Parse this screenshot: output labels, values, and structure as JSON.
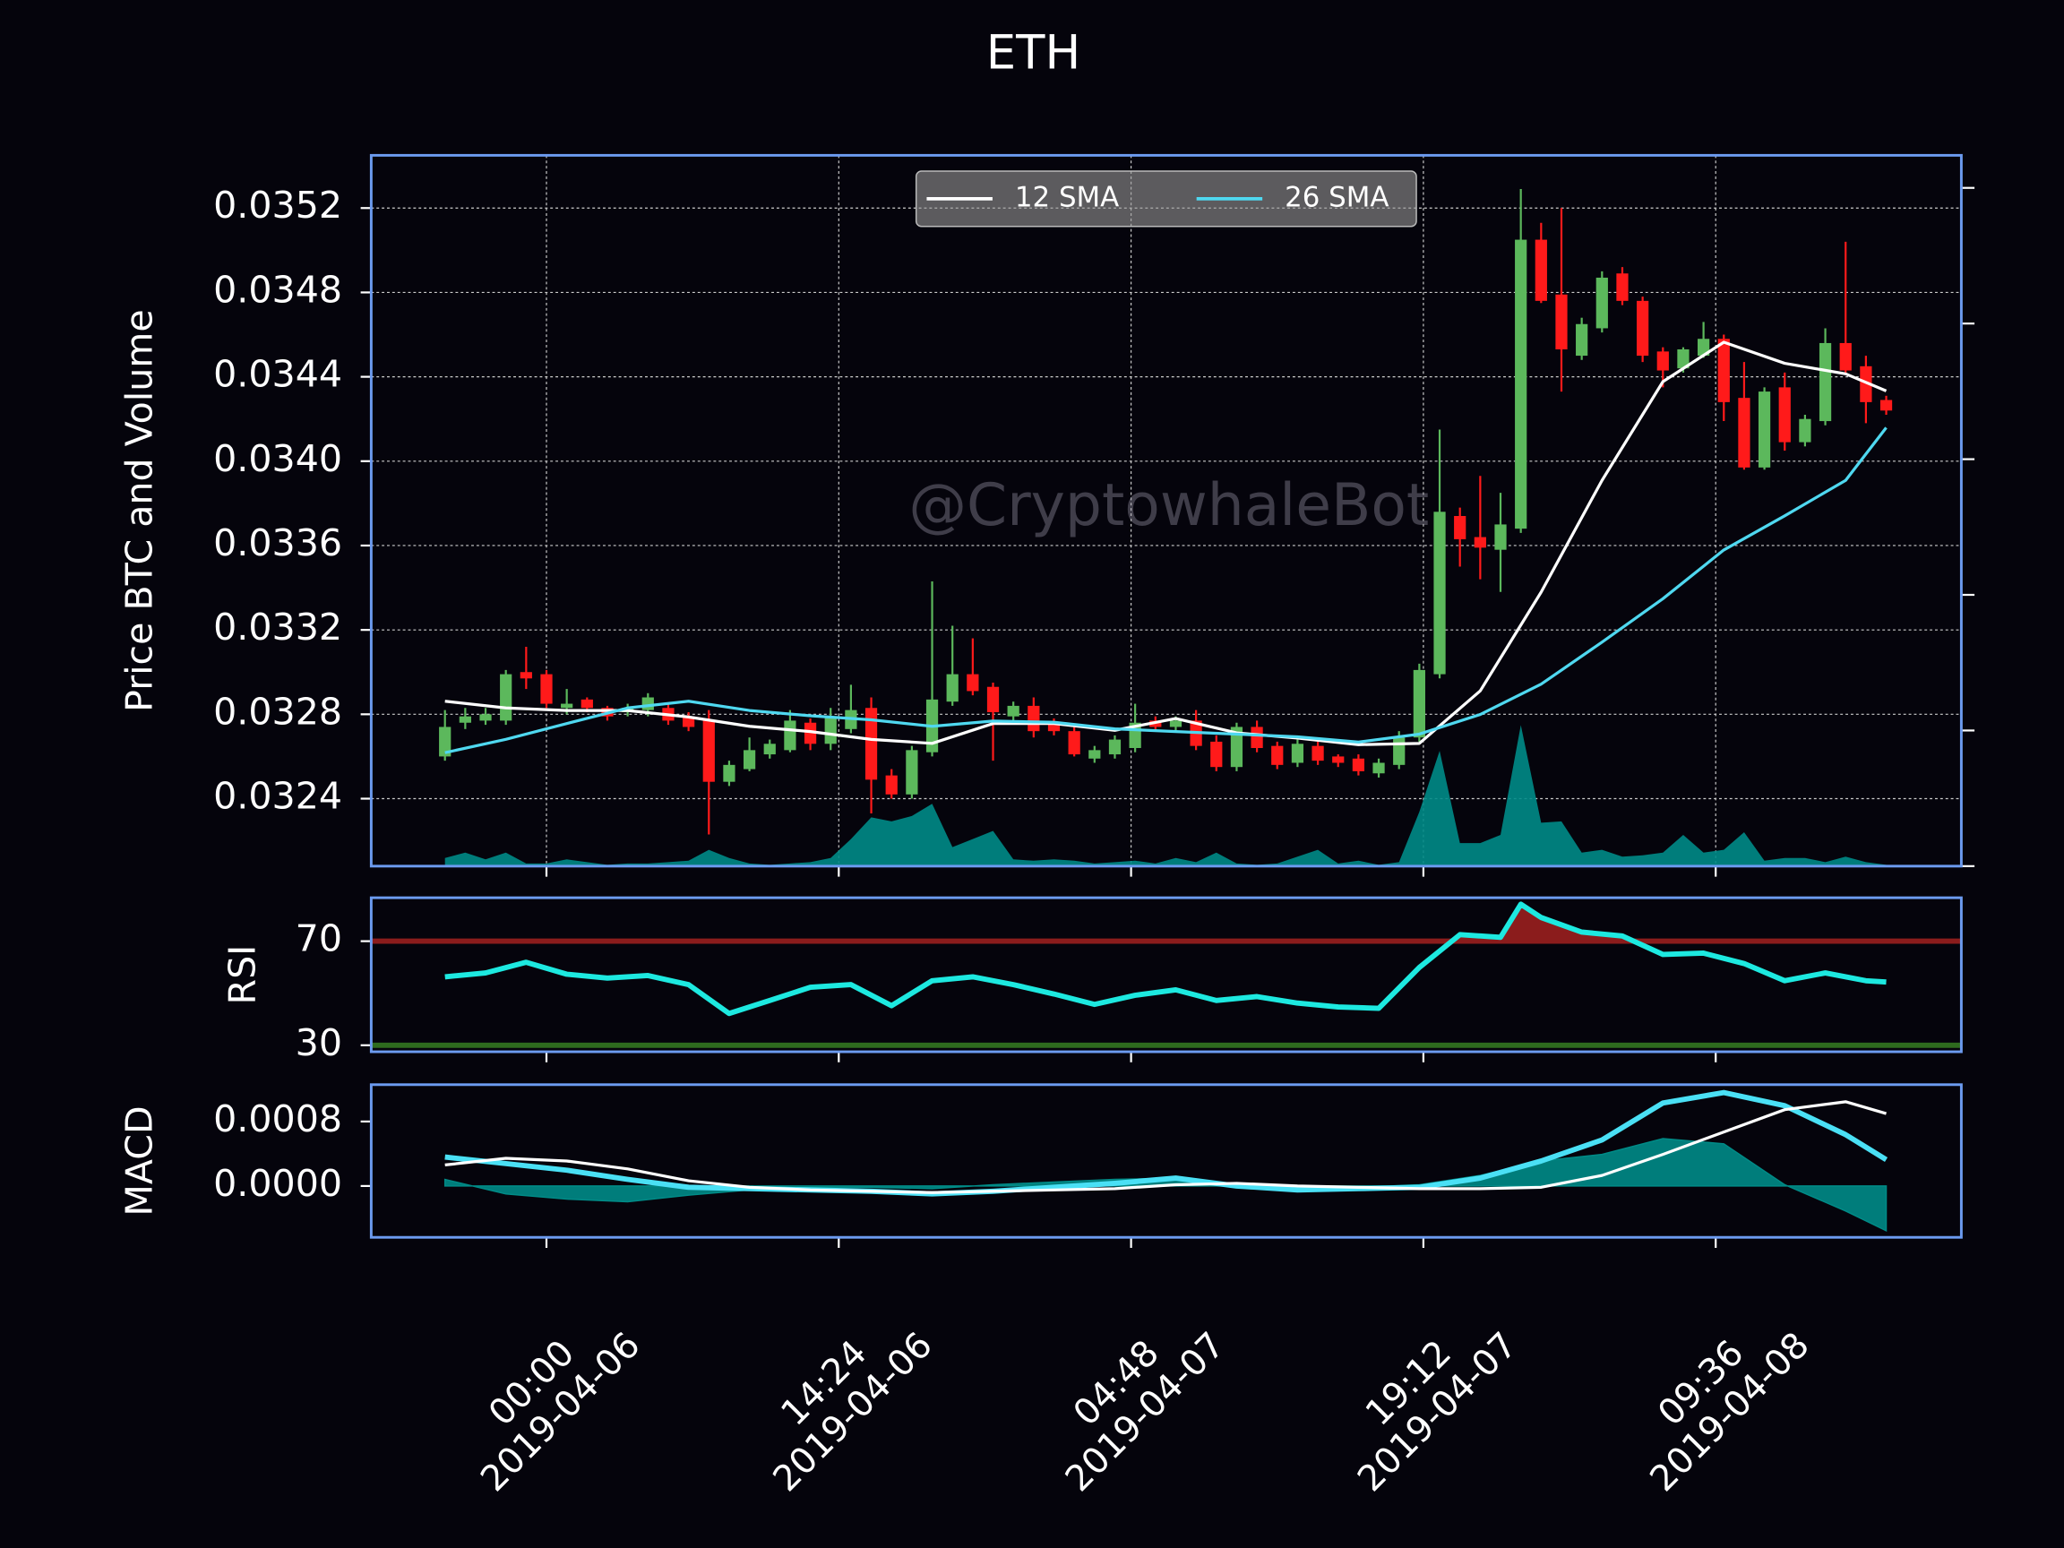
{
  "chart_data": [
    {
      "type": "candlestick",
      "title": "ETH",
      "ylabel": "Price BTC and Volume",
      "watermark": "@CryptowhaleBot",
      "x": [
        "2019-04-05 19:00",
        "2019-04-05 20:00",
        "2019-04-05 21:00",
        "2019-04-05 22:00",
        "2019-04-05 23:00",
        "2019-04-06 00:00",
        "2019-04-06 01:00",
        "2019-04-06 02:00",
        "2019-04-06 03:00",
        "2019-04-06 04:00",
        "2019-04-06 05:00",
        "2019-04-06 06:00",
        "2019-04-06 07:00",
        "2019-04-06 08:00",
        "2019-04-06 09:00",
        "2019-04-06 10:00",
        "2019-04-06 11:00",
        "2019-04-06 12:00",
        "2019-04-06 13:00",
        "2019-04-06 14:00",
        "2019-04-06 15:00",
        "2019-04-06 16:00",
        "2019-04-06 17:00",
        "2019-04-06 18:00",
        "2019-04-06 19:00",
        "2019-04-06 20:00",
        "2019-04-06 21:00",
        "2019-04-06 22:00",
        "2019-04-06 23:00",
        "2019-04-07 00:00",
        "2019-04-07 01:00",
        "2019-04-07 02:00",
        "2019-04-07 03:00",
        "2019-04-07 04:00",
        "2019-04-07 05:00",
        "2019-04-07 06:00",
        "2019-04-07 07:00",
        "2019-04-07 08:00",
        "2019-04-07 09:00",
        "2019-04-07 10:00",
        "2019-04-07 11:00",
        "2019-04-07 12:00",
        "2019-04-07 13:00",
        "2019-04-07 14:00",
        "2019-04-07 15:00",
        "2019-04-07 16:00",
        "2019-04-07 17:00",
        "2019-04-07 18:00",
        "2019-04-07 19:00",
        "2019-04-07 20:00",
        "2019-04-07 21:00",
        "2019-04-07 22:00",
        "2019-04-07 23:00",
        "2019-04-08 00:00",
        "2019-04-08 01:00",
        "2019-04-08 02:00",
        "2019-04-08 03:00",
        "2019-04-08 04:00",
        "2019-04-08 05:00",
        "2019-04-08 06:00",
        "2019-04-08 07:00",
        "2019-04-08 08:00",
        "2019-04-08 09:00",
        "2019-04-08 10:00",
        "2019-04-08 11:00",
        "2019-04-08 12:00",
        "2019-04-08 13:00",
        "2019-04-08 14:00",
        "2019-04-08 15:00",
        "2019-04-08 16:00",
        "2019-04-08 17:00",
        "2019-04-08 18:00"
      ],
      "open": [
        0.0326,
        0.03276,
        0.03277,
        0.03277,
        0.033,
        0.03299,
        0.03283,
        0.03287,
        0.03283,
        0.03281,
        0.03282,
        0.03283,
        0.03279,
        0.03277,
        0.03248,
        0.03254,
        0.03261,
        0.03263,
        0.03276,
        0.03266,
        0.03273,
        0.03283,
        0.03251,
        0.03242,
        0.03262,
        0.03286,
        0.03299,
        0.03293,
        0.03279,
        0.03284,
        0.03276,
        0.03272,
        0.03259,
        0.03261,
        0.03264,
        0.03277,
        0.03274,
        0.03277,
        0.03267,
        0.03255,
        0.03274,
        0.03265,
        0.03257,
        0.03265,
        0.0326,
        0.03259,
        0.03252,
        0.03256,
        0.03269,
        0.03299,
        0.03374,
        0.03364,
        0.03358,
        0.03368,
        0.03505,
        0.03479,
        0.0345,
        0.03463,
        0.03489,
        0.03476,
        0.03452,
        0.03444,
        0.0345,
        0.03458,
        0.0343,
        0.03397,
        0.03435,
        0.03409,
        0.03419,
        0.03456,
        0.03445,
        0.03429
      ],
      "high": [
        0.03282,
        0.03283,
        0.03283,
        0.03301,
        0.03312,
        0.03301,
        0.03292,
        0.03288,
        0.03284,
        0.03285,
        0.0329,
        0.03285,
        0.03281,
        0.03282,
        0.03258,
        0.03269,
        0.03268,
        0.03282,
        0.03278,
        0.03283,
        0.03294,
        0.03288,
        0.03254,
        0.03265,
        0.03343,
        0.03322,
        0.03316,
        0.03295,
        0.03286,
        0.03288,
        0.03278,
        0.03274,
        0.03265,
        0.0327,
        0.03285,
        0.03279,
        0.03279,
        0.03282,
        0.0327,
        0.03276,
        0.03277,
        0.03267,
        0.03268,
        0.03267,
        0.03261,
        0.03261,
        0.03259,
        0.03272,
        0.03304,
        0.03415,
        0.03378,
        0.03393,
        0.03385,
        0.03529,
        0.03513,
        0.0352,
        0.03468,
        0.0349,
        0.03492,
        0.03478,
        0.03454,
        0.03454,
        0.03466,
        0.0346,
        0.03447,
        0.03435,
        0.03442,
        0.03422,
        0.03463,
        0.03504,
        0.0345,
        0.03431
      ],
      "low": [
        0.03258,
        0.03273,
        0.03275,
        0.03275,
        0.03292,
        0.03283,
        0.0328,
        0.03281,
        0.03277,
        0.03279,
        0.03279,
        0.03275,
        0.03272,
        0.03223,
        0.03246,
        0.03253,
        0.03259,
        0.03262,
        0.03263,
        0.03263,
        0.03271,
        0.03233,
        0.0324,
        0.0324,
        0.0326,
        0.03284,
        0.03289,
        0.03258,
        0.03277,
        0.03269,
        0.0327,
        0.0326,
        0.03257,
        0.03259,
        0.03262,
        0.03272,
        0.03272,
        0.03263,
        0.03253,
        0.03253,
        0.03262,
        0.03254,
        0.03255,
        0.03256,
        0.03255,
        0.03251,
        0.0325,
        0.03254,
        0.03267,
        0.03297,
        0.0335,
        0.03344,
        0.03338,
        0.03366,
        0.03475,
        0.03433,
        0.03448,
        0.03461,
        0.03474,
        0.03447,
        0.03435,
        0.03442,
        0.03449,
        0.03419,
        0.03396,
        0.03396,
        0.03405,
        0.03407,
        0.03417,
        0.03441,
        0.03418,
        0.03422
      ],
      "close": [
        0.03274,
        0.03279,
        0.0328,
        0.03299,
        0.03297,
        0.03285,
        0.03285,
        0.03283,
        0.03279,
        0.03283,
        0.03288,
        0.03277,
        0.03274,
        0.03248,
        0.03256,
        0.03263,
        0.03266,
        0.03277,
        0.03266,
        0.03279,
        0.03282,
        0.03249,
        0.03242,
        0.03263,
        0.03287,
        0.03299,
        0.03291,
        0.03281,
        0.03284,
        0.03272,
        0.03272,
        0.03261,
        0.03263,
        0.03268,
        0.03276,
        0.03274,
        0.03277,
        0.03265,
        0.03255,
        0.03274,
        0.03264,
        0.03256,
        0.03266,
        0.03258,
        0.03257,
        0.03253,
        0.03257,
        0.03269,
        0.03301,
        0.03376,
        0.03363,
        0.03359,
        0.0337,
        0.03505,
        0.03476,
        0.03453,
        0.03465,
        0.03487,
        0.03476,
        0.0345,
        0.03443,
        0.03453,
        0.03458,
        0.03428,
        0.03397,
        0.03433,
        0.03409,
        0.0342,
        0.03456,
        0.03443,
        0.03428,
        0.03424
      ],
      "up_color": "#5cb85c",
      "down_color": "#ff1a1a",
      "volume": {
        "axis": "y2",
        "color": "#008b87",
        "values": [
          0.06,
          0.1,
          0.05,
          0.1,
          0.02,
          0.02,
          0.05,
          0.03,
          0.01,
          0.02,
          0.02,
          0.03,
          0.04,
          0.12,
          0.06,
          0.02,
          0.01,
          0.02,
          0.03,
          0.06,
          0.2,
          0.36,
          0.33,
          0.37,
          0.46,
          0.14,
          0.2,
          0.26,
          0.05,
          0.04,
          0.05,
          0.04,
          0.02,
          0.03,
          0.04,
          0.02,
          0.06,
          0.03,
          0.1,
          0.02,
          0.01,
          0.02,
          0.07,
          0.12,
          0.02,
          0.04,
          0.01,
          0.03,
          0.4,
          0.85,
          0.17,
          0.17,
          0.23,
          1.04,
          0.32,
          0.33,
          0.1,
          0.12,
          0.07,
          0.08,
          0.1,
          0.23,
          0.1,
          0.12,
          0.25,
          0.04,
          0.06,
          0.06,
          0.03,
          0.07,
          0.03,
          0.01
        ]
      },
      "series": [
        {
          "name": "12 SMA",
          "color": "#ffffff",
          "x": [
            "2019-04-05 19:00",
            "2019-04-05 22:00",
            "2019-04-06 01:00",
            "2019-04-06 04:00",
            "2019-04-06 07:00",
            "2019-04-06 10:00",
            "2019-04-06 13:00",
            "2019-04-06 16:00",
            "2019-04-06 19:00",
            "2019-04-06 22:00",
            "2019-04-07 01:00",
            "2019-04-07 04:00",
            "2019-04-07 07:00",
            "2019-04-07 10:00",
            "2019-04-07 13:00",
            "2019-04-07 16:00",
            "2019-04-07 19:00",
            "2019-04-07 22:00",
            "2019-04-08 01:00",
            "2019-04-08 04:00",
            "2019-04-08 07:00",
            "2019-04-08 10:00",
            "2019-04-08 13:00",
            "2019-04-08 16:00",
            "2019-04-08 18:00"
          ],
          "values": [
            0.032862,
            0.03283,
            0.032818,
            0.032818,
            0.032787,
            0.032743,
            0.032718,
            0.032681,
            0.032662,
            0.032756,
            0.032756,
            0.032724,
            0.03278,
            0.032712,
            0.032687,
            0.032656,
            0.032662,
            0.032911,
            0.033379,
            0.033909,
            0.034377,
            0.034564,
            0.034464,
            0.034414,
            0.034333
          ]
        },
        {
          "name": "26 SMA",
          "color": "#4fd8f0",
          "x": [
            "2019-04-05 19:00",
            "2019-04-05 22:00",
            "2019-04-06 01:00",
            "2019-04-06 04:00",
            "2019-04-06 07:00",
            "2019-04-06 10:00",
            "2019-04-06 13:00",
            "2019-04-06 16:00",
            "2019-04-06 19:00",
            "2019-04-06 22:00",
            "2019-04-07 01:00",
            "2019-04-07 04:00",
            "2019-04-07 07:00",
            "2019-04-07 10:00",
            "2019-04-07 13:00",
            "2019-04-07 16:00",
            "2019-04-07 19:00",
            "2019-04-07 22:00",
            "2019-04-08 01:00",
            "2019-04-08 04:00",
            "2019-04-08 07:00",
            "2019-04-08 10:00",
            "2019-04-08 13:00",
            "2019-04-08 16:00",
            "2019-04-08 18:00"
          ],
          "values": [
            0.032618,
            0.032681,
            0.032756,
            0.03283,
            0.032862,
            0.032818,
            0.032793,
            0.032774,
            0.032743,
            0.032768,
            0.032762,
            0.032731,
            0.032718,
            0.032706,
            0.032693,
            0.032668,
            0.032706,
            0.032799,
            0.032943,
            0.033142,
            0.033348,
            0.033579,
            0.033741,
            0.033909,
            0.034159
          ]
        }
      ],
      "legend": "upper center",
      "ylim": [
        0.03208,
        0.03545
      ],
      "yticks": [
        0.0324,
        0.0328,
        0.0332,
        0.0336,
        {
          "value": 0.034,
          "label": "0.0340"
        },
        0.0344,
        0.0348,
        0.0352
      ],
      "y2lim": [
        0,
        5.24
      ],
      "y2ticks": [
        0,
        1,
        2,
        3,
        4,
        5
      ],
      "grid": true
    },
    {
      "type": "line",
      "ylabel": "RSI",
      "x": [
        "2019-04-05 19:00",
        "2019-04-05 21:00",
        "2019-04-05 23:00",
        "2019-04-06 01:00",
        "2019-04-06 03:00",
        "2019-04-06 05:00",
        "2019-04-06 07:00",
        "2019-04-06 09:00",
        "2019-04-06 11:00",
        "2019-04-06 13:00",
        "2019-04-06 15:00",
        "2019-04-06 17:00",
        "2019-04-06 19:00",
        "2019-04-06 21:00",
        "2019-04-06 23:00",
        "2019-04-07 01:00",
        "2019-04-07 03:00",
        "2019-04-07 05:00",
        "2019-04-07 07:00",
        "2019-04-07 09:00",
        "2019-04-07 11:00",
        "2019-04-07 13:00",
        "2019-04-07 15:00",
        "2019-04-07 17:00",
        "2019-04-07 19:00",
        "2019-04-07 21:00",
        "2019-04-07 23:00",
        "2019-04-08 00:00",
        "2019-04-08 01:00",
        "2019-04-08 03:00",
        "2019-04-08 05:00",
        "2019-04-08 07:00",
        "2019-04-08 09:00",
        "2019-04-08 11:00",
        "2019-04-08 13:00",
        "2019-04-08 15:00",
        "2019-04-08 17:00",
        "2019-04-08 18:00"
      ],
      "series": [
        {
          "color": "#1de9e0",
          "values": [
            56.3,
            57.8,
            61.9,
            57.3,
            55.8,
            56.8,
            53.3,
            42.2,
            47.2,
            52.3,
            53.3,
            45.2,
            54.8,
            56.3,
            53.3,
            49.7,
            45.7,
            49.2,
            51.3,
            47.2,
            48.7,
            46.2,
            44.7,
            44.2,
            59.9,
            72.5,
            71.5,
            84.2,
            79.1,
            73.5,
            72.0,
            64.9,
            65.4,
            61.4,
            54.8,
            57.8,
            54.8,
            54.3
          ]
        }
      ],
      "hlines": [
        {
          "value": 70,
          "color": "#8b1c1c",
          "fill": "above"
        },
        {
          "value": 30,
          "color": "#2e6b1e"
        }
      ],
      "ylim": [
        27.5,
        86.7
      ],
      "yticks": [
        30,
        70
      ]
    },
    {
      "type": "line",
      "ylabel": "MACD",
      "x": [
        "2019-04-05 19:00",
        "2019-04-05 22:00",
        "2019-04-06 01:00",
        "2019-04-06 04:00",
        "2019-04-06 07:00",
        "2019-04-06 10:00",
        "2019-04-06 13:00",
        "2019-04-06 16:00",
        "2019-04-06 19:00",
        "2019-04-06 22:00",
        "2019-04-07 01:00",
        "2019-04-07 04:00",
        "2019-04-07 07:00",
        "2019-04-07 10:00",
        "2019-04-07 13:00",
        "2019-04-07 16:00",
        "2019-04-07 19:00",
        "2019-04-07 22:00",
        "2019-04-08 01:00",
        "2019-04-08 04:00",
        "2019-04-08 07:00",
        "2019-04-08 10:00",
        "2019-04-08 13:00",
        "2019-04-08 16:00",
        "2019-04-08 18:00"
      ],
      "series": [
        {
          "kind": "area",
          "color": "#008b87",
          "values": [
            8.2e-05,
            -9.8e-05,
            -0.000163,
            -0.000196,
            -0.000114,
            -4.9e-05,
            -1.6e-05,
            -1.6e-05,
            -3.3e-05,
            1.6e-05,
            4.9e-05,
            8.2e-05,
            9.8e-05,
            -1.6e-05,
            -3.3e-05,
            -1.6e-05,
            1.6e-05,
            0.000131,
            0.00031,
            0.000392,
            0.000588,
            0.000523,
            1.6e-05,
            -0.00031,
            -0.000555
          ]
        },
        {
          "kind": "line",
          "color": "#4ae0f5",
          "values": [
            0.000359,
            0.000278,
            0.000196,
            8.2e-05,
            -1.6e-05,
            -3.3e-05,
            -4.9e-05,
            -6.5e-05,
            -9.8e-05,
            -6.5e-05,
            -1.6e-05,
            3.3e-05,
            9.8e-05,
            0,
            -4.9e-05,
            -3.3e-05,
            -1.6e-05,
            9.8e-05,
            0.00031,
            0.000571,
            0.001029,
            0.001159,
            0.000996,
            0.000637,
            0.000327
          ]
        },
        {
          "kind": "line",
          "color": "#ffffff",
          "values": [
            0.000261,
            0.000343,
            0.00031,
            0.000212,
            6.5e-05,
            -1.6e-05,
            -4.9e-05,
            -6.5e-05,
            -8.2e-05,
            -6.5e-05,
            -4.9e-05,
            -3.3e-05,
            1.6e-05,
            3.3e-05,
            0,
            -1.6e-05,
            -3.3e-05,
            -3.3e-05,
            -1.6e-05,
            0.000131,
            0.000392,
            0.00067,
            0.000947,
            0.001045,
            0.000898
          ]
        }
      ],
      "ylim": [
        -0.000637,
        0.001257
      ],
      "yticks": [
        {
          "value": 0,
          "label": "0.0000"
        },
        0.0008
      ],
      "xlim": [
        "2019-04-05 15:22",
        "2019-04-08 21:42"
      ],
      "xticks": [
        {
          "value": "2019-04-06 00:00",
          "label": "00:00\n2019-04-06"
        },
        {
          "value": "2019-04-06 14:24",
          "label": "14:24\n2019-04-06"
        },
        {
          "value": "2019-04-07 04:48",
          "label": "04:48\n2019-04-07"
        },
        {
          "value": "2019-04-07 19:12",
          "label": "19:12\n2019-04-07"
        },
        {
          "value": "2019-04-08 09:36",
          "label": "09:36\n2019-04-08"
        }
      ]
    }
  ]
}
